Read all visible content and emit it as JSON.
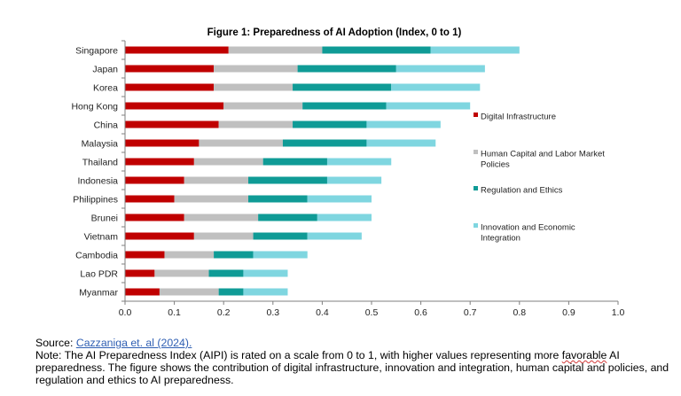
{
  "chart_data": {
    "type": "bar",
    "orientation": "horizontal",
    "stacked": true,
    "title": "Figure 1: Preparedness of AI Adoption (Index, 0 to 1)",
    "xlabel": "",
    "ylabel": "",
    "xlim": [
      0,
      1.0
    ],
    "xticks": [
      "0.0",
      "0.1",
      "0.2",
      "0.3",
      "0.4",
      "0.5",
      "0.6",
      "0.7",
      "0.8",
      "0.9",
      "1.0"
    ],
    "grid": false,
    "legend_position": "right",
    "categories": [
      "Singapore",
      "Japan",
      "Korea",
      "Hong Kong",
      "China",
      "Malaysia",
      "Thailand",
      "Indonesia",
      "Philippines",
      "Brunei",
      "Vietnam",
      "Cambodia",
      "Lao PDR",
      "Myanmar"
    ],
    "series": [
      {
        "name": "Digital Infrastructure",
        "color": "#c00000",
        "values": [
          0.21,
          0.18,
          0.18,
          0.2,
          0.19,
          0.15,
          0.14,
          0.12,
          0.1,
          0.12,
          0.14,
          0.08,
          0.06,
          0.07
        ]
      },
      {
        "name": "Human Capital and Labor Market Policies",
        "color": "#c0c0c0",
        "values": [
          0.19,
          0.17,
          0.16,
          0.16,
          0.15,
          0.17,
          0.14,
          0.13,
          0.15,
          0.15,
          0.12,
          0.1,
          0.11,
          0.12
        ]
      },
      {
        "name": "Regulation and Ethics",
        "color": "#0f9b96",
        "values": [
          0.22,
          0.2,
          0.2,
          0.17,
          0.15,
          0.17,
          0.13,
          0.16,
          0.12,
          0.12,
          0.11,
          0.08,
          0.07,
          0.05
        ]
      },
      {
        "name": "Innovation and Economic Integration",
        "color": "#7fd6e0",
        "values": [
          0.18,
          0.18,
          0.18,
          0.17,
          0.15,
          0.14,
          0.13,
          0.11,
          0.13,
          0.11,
          0.11,
          0.11,
          0.09,
          0.09
        ]
      }
    ]
  },
  "source": {
    "label": "Source:",
    "link_text": "Cazzaniga et. al (2024)."
  },
  "note": {
    "label": "Note:",
    "text_before": "The AI Preparedness Index (AIPI) is rated on a scale from 0 to 1, with higher values representing more",
    "underlined_word": "favorable",
    "text_after": "AI preparedness. The figure shows the contribution of digital infrastructure, innovation and integration, human capital and policies, and regulation and ethics to AI preparedness."
  }
}
